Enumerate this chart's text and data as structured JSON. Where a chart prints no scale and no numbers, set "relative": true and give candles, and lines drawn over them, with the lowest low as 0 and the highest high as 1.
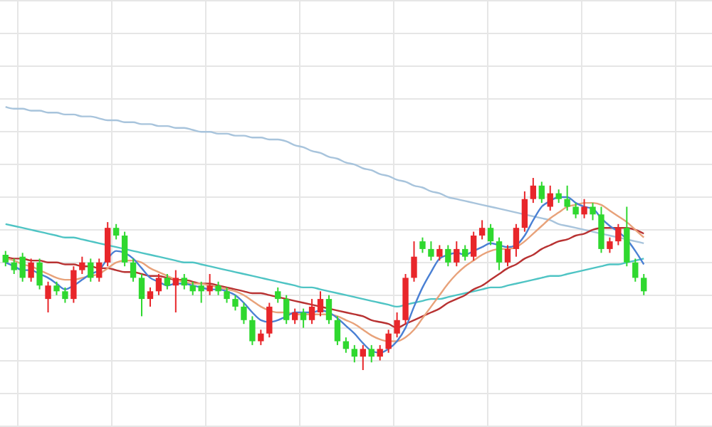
{
  "chart_data": {
    "type": "candlestick",
    "relative": true,
    "grid": true,
    "categories": [
      null,
      null,
      null,
      null,
      null,
      null,
      null,
      null,
      null,
      null,
      null,
      null,
      null,
      null,
      null,
      null,
      null,
      null,
      null,
      null,
      null,
      null,
      null,
      null,
      null,
      null,
      null,
      null,
      null,
      null,
      null,
      null,
      null,
      null,
      null,
      null,
      null,
      null,
      null,
      null,
      null,
      null,
      null,
      null,
      null,
      null,
      null,
      null,
      null,
      null,
      null,
      null,
      null,
      null,
      null,
      null,
      null,
      null,
      null,
      null,
      null,
      null,
      null,
      null,
      null,
      null,
      null,
      null,
      null,
      null,
      null,
      null,
      null,
      null,
      null,
      null
    ],
    "colors": [
      "#2fd82f",
      "#2fd82f",
      "#2fd82f",
      "#e8262a",
      "#2fd82f",
      "#e8262a",
      "#2fd82f",
      "#2fd82f",
      "#e8262a",
      "#e8262a",
      "#2fd82f",
      "#e8262a",
      "#e8262a",
      "#2fd82f",
      "#2fd82f",
      "#2fd82f",
      "#2fd82f",
      "#e8262a",
      "#e8262a",
      "#2fd82f",
      "#e8262a",
      "#2fd82f",
      "#2fd82f",
      "#2fd82f",
      "#e8262a",
      "#2fd82f",
      "#2fd82f",
      "#2fd82f",
      "#2fd82f",
      "#2fd82f",
      "#e8262a",
      "#e8262a",
      "#2fd82f",
      "#2fd82f",
      "#e8262a",
      "#2fd82f",
      "#e8262a",
      "#e8262a",
      "#2fd82f",
      "#2fd82f",
      "#2fd82f",
      "#2fd82f",
      "#e8262a",
      "#2fd82f",
      "#e8262a",
      "#e8262a",
      "#e8262a",
      "#e8262a",
      "#e8262a",
      "#2fd82f",
      "#2fd82f",
      "#e8262a",
      "#2fd82f",
      "#e8262a",
      "#2fd82f",
      "#e8262a",
      "#e8262a",
      "#2fd82f",
      "#2fd82f",
      "#e8262a",
      "#e8262a",
      "#e8262a",
      "#e8262a",
      "#2fd82f",
      "#e8262a",
      "#2fd82f",
      "#2fd82f",
      "#2fd82f",
      "#e8262a",
      "#2fd82f",
      "#2fd82f",
      "#e8262a",
      "#e8262a",
      "#2fd82f",
      "#2fd82f",
      "#2fd82f"
    ],
    "ohlc": [
      [
        0.6,
        0.62,
        0.54,
        0.56
      ],
      [
        0.56,
        0.58,
        0.5,
        0.52
      ],
      [
        0.59,
        0.61,
        0.46,
        0.48
      ],
      [
        0.48,
        0.58,
        0.46,
        0.56
      ],
      [
        0.56,
        0.58,
        0.42,
        0.44
      ],
      [
        0.37,
        0.46,
        0.3,
        0.44
      ],
      [
        0.44,
        0.46,
        0.39,
        0.41
      ],
      [
        0.41,
        0.43,
        0.35,
        0.37
      ],
      [
        0.37,
        0.54,
        0.35,
        0.52
      ],
      [
        0.52,
        0.59,
        0.5,
        0.56
      ],
      [
        0.56,
        0.58,
        0.46,
        0.48
      ],
      [
        0.48,
        0.58,
        0.46,
        0.56
      ],
      [
        0.56,
        0.77,
        0.54,
        0.74
      ],
      [
        0.74,
        0.76,
        0.68,
        0.7
      ],
      [
        0.7,
        0.72,
        0.54,
        0.56
      ],
      [
        0.56,
        0.58,
        0.46,
        0.48
      ],
      [
        0.48,
        0.5,
        0.28,
        0.37
      ],
      [
        0.37,
        0.43,
        0.33,
        0.41
      ],
      [
        0.41,
        0.5,
        0.39,
        0.48
      ],
      [
        0.48,
        0.5,
        0.42,
        0.44
      ],
      [
        0.44,
        0.52,
        0.3,
        0.48
      ],
      [
        0.48,
        0.5,
        0.42,
        0.44
      ],
      [
        0.44,
        0.46,
        0.39,
        0.41
      ],
      [
        0.44,
        0.46,
        0.35,
        0.41
      ],
      [
        0.41,
        0.5,
        0.39,
        0.44
      ],
      [
        0.44,
        0.46,
        0.39,
        0.41
      ],
      [
        0.41,
        0.43,
        0.35,
        0.37
      ],
      [
        0.37,
        0.39,
        0.31,
        0.33
      ],
      [
        0.33,
        0.35,
        0.24,
        0.26
      ],
      [
        0.26,
        0.28,
        0.13,
        0.15
      ],
      [
        0.15,
        0.21,
        0.13,
        0.19
      ],
      [
        0.19,
        0.35,
        0.17,
        0.33
      ],
      [
        0.41,
        0.43,
        0.35,
        0.37
      ],
      [
        0.37,
        0.39,
        0.24,
        0.26
      ],
      [
        0.26,
        0.32,
        0.24,
        0.3
      ],
      [
        0.3,
        0.32,
        0.22,
        0.26
      ],
      [
        0.26,
        0.37,
        0.24,
        0.33
      ],
      [
        0.3,
        0.41,
        0.28,
        0.37
      ],
      [
        0.37,
        0.39,
        0.24,
        0.26
      ],
      [
        0.26,
        0.28,
        0.13,
        0.15
      ],
      [
        0.15,
        0.17,
        0.09,
        0.11
      ],
      [
        0.11,
        0.13,
        0.04,
        0.07
      ],
      [
        0.07,
        0.13,
        0,
        0.11
      ],
      [
        0.11,
        0.13,
        0.04,
        0.07
      ],
      [
        0.07,
        0.13,
        0.05,
        0.11
      ],
      [
        0.11,
        0.21,
        0.09,
        0.19
      ],
      [
        0.19,
        0.3,
        0.17,
        0.26
      ],
      [
        0.26,
        0.5,
        0.24,
        0.48
      ],
      [
        0.48,
        0.67,
        0.46,
        0.59
      ],
      [
        0.67,
        0.69,
        0.61,
        0.63
      ],
      [
        0.63,
        0.67,
        0.57,
        0.59
      ],
      [
        0.59,
        0.65,
        0.57,
        0.63
      ],
      [
        0.63,
        0.65,
        0.54,
        0.56
      ],
      [
        0.56,
        0.67,
        0.54,
        0.63
      ],
      [
        0.63,
        0.65,
        0.57,
        0.59
      ],
      [
        0.59,
        0.72,
        0.57,
        0.7
      ],
      [
        0.7,
        0.78,
        0.68,
        0.74
      ],
      [
        0.74,
        0.76,
        0.65,
        0.67
      ],
      [
        0.67,
        0.69,
        0.52,
        0.56
      ],
      [
        0.56,
        0.65,
        0.54,
        0.63
      ],
      [
        0.63,
        0.76,
        0.59,
        0.74
      ],
      [
        0.74,
        0.93,
        0.72,
        0.89
      ],
      [
        0.89,
        1,
        0.87,
        0.96
      ],
      [
        0.96,
        0.98,
        0.87,
        0.89
      ],
      [
        0.85,
        0.96,
        0.83,
        0.92
      ],
      [
        0.92,
        0.94,
        0.87,
        0.89
      ],
      [
        0.89,
        0.96,
        0.83,
        0.85
      ],
      [
        0.85,
        0.87,
        0.79,
        0.81
      ],
      [
        0.81,
        0.89,
        0.79,
        0.85
      ],
      [
        0.85,
        0.87,
        0.78,
        0.81
      ],
      [
        0.81,
        0.85,
        0.61,
        0.63
      ],
      [
        0.63,
        0.69,
        0.61,
        0.67
      ],
      [
        0.67,
        0.76,
        0.65,
        0.74
      ],
      [
        0.74,
        0.85,
        0.54,
        0.56
      ],
      [
        0.56,
        0.58,
        0.46,
        0.48
      ],
      [
        0.48,
        0.5,
        0.39,
        0.41
      ]
    ],
    "series": [
      {
        "type": "line",
        "color": "#a8c4dc",
        "values": [
          1.37,
          1.36,
          1.36,
          1.35,
          1.35,
          1.34,
          1.34,
          1.33,
          1.33,
          1.32,
          1.32,
          1.31,
          1.3,
          1.3,
          1.29,
          1.29,
          1.28,
          1.28,
          1.27,
          1.27,
          1.26,
          1.26,
          1.25,
          1.24,
          1.24,
          1.23,
          1.23,
          1.22,
          1.22,
          1.21,
          1.21,
          1.2,
          1.2,
          1.19,
          1.17,
          1.16,
          1.14,
          1.13,
          1.11,
          1.1,
          1.08,
          1.07,
          1.05,
          1.04,
          1.02,
          1.01,
          0.99,
          0.98,
          0.96,
          0.95,
          0.93,
          0.92,
          0.9,
          0.89,
          0.88,
          0.87,
          0.86,
          0.85,
          0.84,
          0.83,
          0.82,
          0.81,
          0.8,
          0.79,
          0.78,
          0.76,
          0.75,
          0.74,
          0.73,
          0.72,
          0.71,
          0.7,
          0.69,
          0.68,
          0.67,
          0.66
        ]
      },
      {
        "type": "line",
        "color": "#4fc4c4",
        "values": [
          0.76,
          0.75,
          0.74,
          0.73,
          0.72,
          0.71,
          0.7,
          0.69,
          0.69,
          0.68,
          0.67,
          0.66,
          0.65,
          0.64,
          0.63,
          0.62,
          0.61,
          0.6,
          0.59,
          0.58,
          0.57,
          0.56,
          0.56,
          0.55,
          0.54,
          0.53,
          0.52,
          0.51,
          0.5,
          0.49,
          0.48,
          0.47,
          0.46,
          0.45,
          0.44,
          0.43,
          0.43,
          0.42,
          0.41,
          0.4,
          0.39,
          0.38,
          0.37,
          0.36,
          0.35,
          0.34,
          0.33,
          0.34,
          0.35,
          0.36,
          0.37,
          0.37,
          0.38,
          0.39,
          0.4,
          0.41,
          0.42,
          0.43,
          0.43,
          0.44,
          0.45,
          0.46,
          0.47,
          0.48,
          0.49,
          0.49,
          0.5,
          0.51,
          0.52,
          0.53,
          0.54,
          0.55,
          0.55,
          0.56,
          0.57,
          0.58
        ]
      },
      {
        "type": "line",
        "color": "#b83232",
        "values": [
          0.59,
          0.58,
          0.58,
          0.57,
          0.57,
          0.56,
          0.56,
          0.55,
          0.55,
          0.54,
          0.54,
          0.53,
          0.53,
          0.52,
          0.51,
          0.51,
          0.5,
          0.49,
          0.49,
          0.48,
          0.47,
          0.47,
          0.46,
          0.45,
          0.45,
          0.44,
          0.43,
          0.42,
          0.41,
          0.4,
          0.4,
          0.39,
          0.38,
          0.37,
          0.36,
          0.35,
          0.34,
          0.33,
          0.32,
          0.31,
          0.3,
          0.29,
          0.28,
          0.26,
          0.25,
          0.24,
          0.22,
          0.24,
          0.26,
          0.28,
          0.3,
          0.32,
          0.35,
          0.37,
          0.39,
          0.42,
          0.44,
          0.47,
          0.5,
          0.53,
          0.55,
          0.58,
          0.6,
          0.63,
          0.65,
          0.67,
          0.68,
          0.7,
          0.71,
          0.73,
          0.74,
          0.74,
          0.74,
          0.74,
          0.73,
          0.71
        ]
      },
      {
        "type": "line",
        "color": "#e8a27a",
        "values": [
          0.58,
          0.57,
          0.55,
          0.54,
          0.52,
          0.5,
          0.48,
          0.47,
          0.47,
          0.48,
          0.49,
          0.5,
          0.53,
          0.56,
          0.57,
          0.57,
          0.56,
          0.53,
          0.51,
          0.49,
          0.47,
          0.46,
          0.45,
          0.45,
          0.44,
          0.43,
          0.42,
          0.41,
          0.39,
          0.36,
          0.33,
          0.31,
          0.3,
          0.3,
          0.29,
          0.29,
          0.29,
          0.29,
          0.29,
          0.28,
          0.26,
          0.24,
          0.21,
          0.18,
          0.16,
          0.15,
          0.15,
          0.17,
          0.21,
          0.27,
          0.33,
          0.39,
          0.45,
          0.5,
          0.54,
          0.57,
          0.6,
          0.62,
          0.63,
          0.63,
          0.64,
          0.67,
          0.71,
          0.75,
          0.79,
          0.82,
          0.85,
          0.86,
          0.87,
          0.87,
          0.86,
          0.83,
          0.8,
          0.77,
          0.73,
          0.69
        ]
      },
      {
        "type": "line",
        "color": "#4a80d4",
        "values": [
          0.56,
          0.54,
          0.52,
          0.52,
          0.5,
          0.48,
          0.45,
          0.42,
          0.44,
          0.47,
          0.5,
          0.52,
          0.58,
          0.62,
          0.61,
          0.58,
          0.53,
          0.48,
          0.46,
          0.44,
          0.45,
          0.45,
          0.44,
          0.43,
          0.42,
          0.42,
          0.41,
          0.39,
          0.35,
          0.3,
          0.26,
          0.25,
          0.26,
          0.28,
          0.3,
          0.3,
          0.3,
          0.31,
          0.3,
          0.27,
          0.23,
          0.19,
          0.14,
          0.1,
          0.09,
          0.11,
          0.15,
          0.22,
          0.33,
          0.43,
          0.51,
          0.58,
          0.6,
          0.61,
          0.6,
          0.62,
          0.64,
          0.66,
          0.65,
          0.64,
          0.65,
          0.7,
          0.78,
          0.85,
          0.88,
          0.9,
          0.9,
          0.87,
          0.85,
          0.84,
          0.79,
          0.75,
          0.72,
          0.68,
          0.62,
          0.55
        ]
      }
    ]
  }
}
